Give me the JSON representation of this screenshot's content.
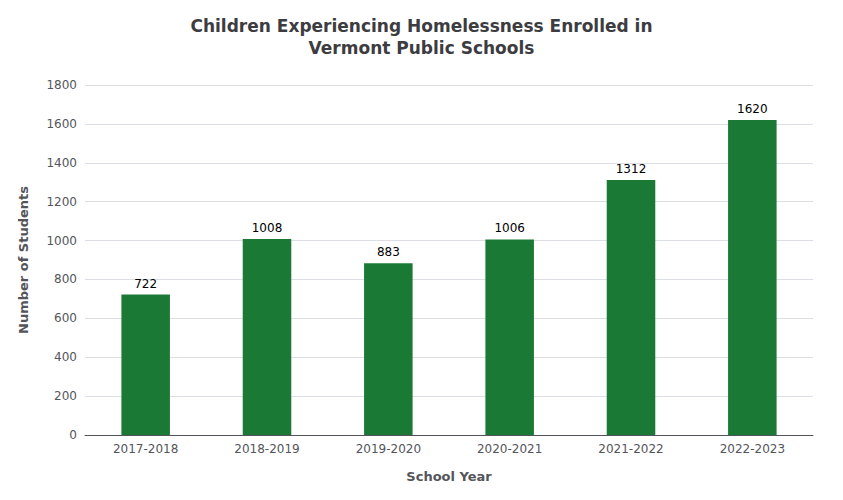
{
  "chart_data": {
    "type": "bar",
    "title": "Children Experiencing Homelessness Enrolled in\nVermont Public Schools",
    "xlabel": "School Year",
    "ylabel": "Number of Students",
    "categories": [
      "2017-2018",
      "2018-2019",
      "2019-2020",
      "2020-2021",
      "2021-2022",
      "2022-2023"
    ],
    "values": [
      722,
      1008,
      883,
      1006,
      1312,
      1620
    ],
    "color": "#1a7a35",
    "ylim": [
      0,
      1800
    ],
    "yticks": [
      0,
      200,
      400,
      600,
      800,
      1000,
      1200,
      1400,
      1600,
      1800
    ],
    "grid": true,
    "data_labels": true
  }
}
